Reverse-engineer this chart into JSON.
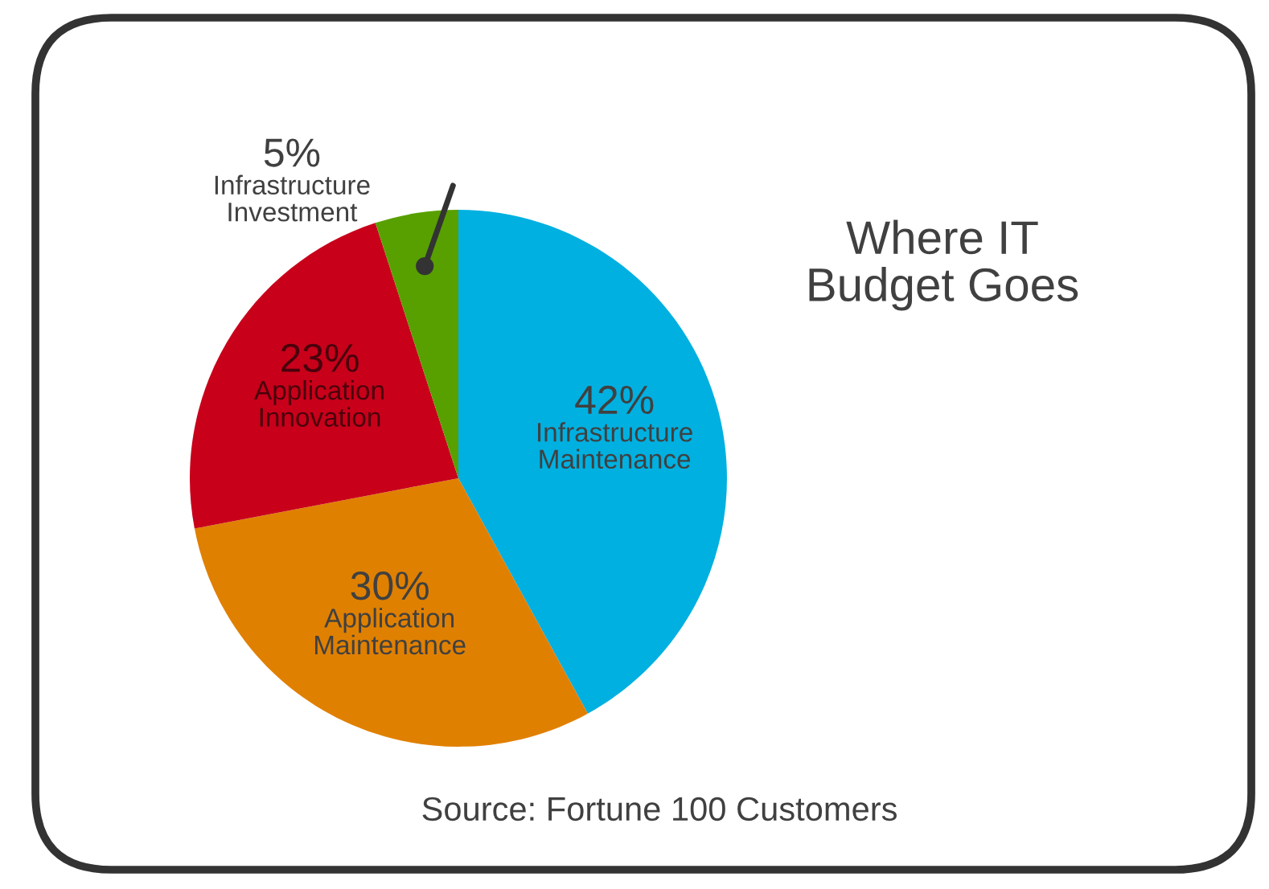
{
  "chart_data": {
    "type": "pie",
    "title": "Where IT\nBudget Goes",
    "categories": [
      "Infrastructure\nMaintenance",
      "Application\nMaintenance",
      "Application\nInnovation",
      "Infrastructure\nInvestment"
    ],
    "values": [
      42,
      30,
      23,
      5
    ],
    "value_labels": [
      "42%",
      "30%",
      "23%",
      "5%"
    ],
    "colors": [
      "#00b0e0",
      "#e08000",
      "#c8001a",
      "#58a000"
    ],
    "annotations": [
      "Source: Fortune 100 Customers"
    ]
  }
}
